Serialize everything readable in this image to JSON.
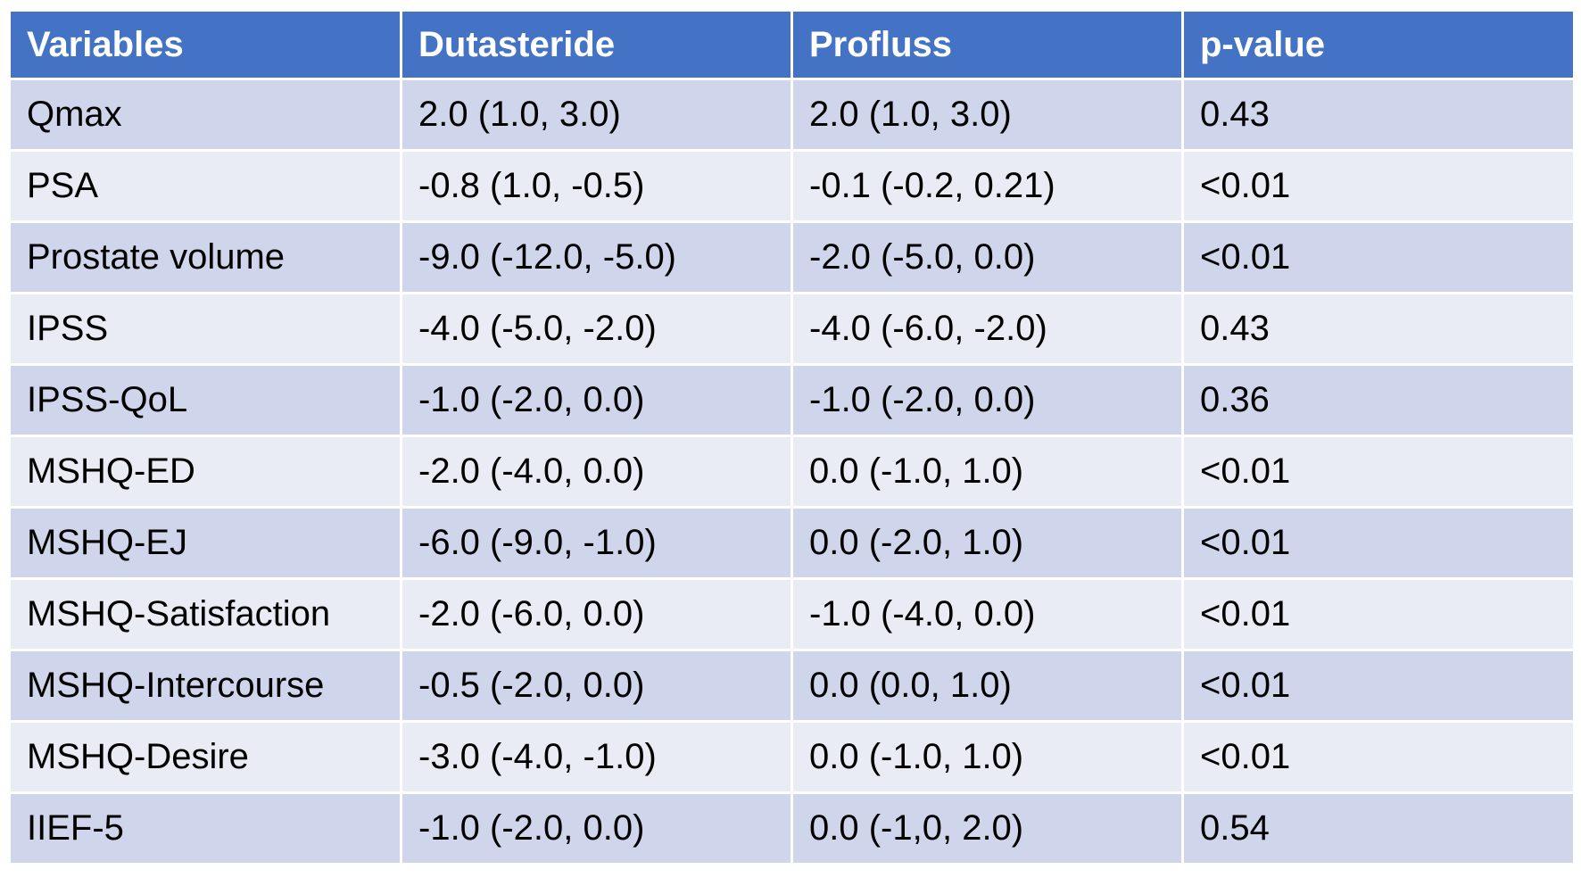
{
  "colors": {
    "header_bg": "#4472c4",
    "header_text": "#ffffff",
    "row_odd_bg": "#cfd5ea",
    "row_even_bg": "#e9ebf5"
  },
  "table": {
    "headers": [
      "Variables",
      "Dutasteride",
      "Profluss",
      "p-value"
    ],
    "rows": [
      [
        "Qmax",
        "2.0 (1.0, 3.0)",
        "2.0 (1.0, 3.0)",
        "0.43"
      ],
      [
        "PSA",
        "-0.8 (1.0, -0.5)",
        "-0.1 (-0.2, 0.21)",
        "<0.01"
      ],
      [
        "Prostate volume",
        "-9.0 (-12.0, -5.0)",
        "-2.0 (-5.0, 0.0)",
        "<0.01"
      ],
      [
        "IPSS",
        "-4.0 (-5.0, -2.0)",
        "-4.0 (-6.0, -2.0)",
        "0.43"
      ],
      [
        "IPSS-QoL",
        "-1.0 (-2.0, 0.0)",
        "-1.0 (-2.0, 0.0)",
        "0.36"
      ],
      [
        "MSHQ-ED",
        "-2.0 (-4.0, 0.0)",
        "0.0 (-1.0, 1.0)",
        "<0.01"
      ],
      [
        "MSHQ-EJ",
        "-6.0 (-9.0, -1.0)",
        "0.0 (-2.0, 1.0)",
        "<0.01"
      ],
      [
        "MSHQ-Satisfaction",
        "-2.0 (-6.0, 0.0)",
        "-1.0 (-4.0, 0.0)",
        "<0.01"
      ],
      [
        "MSHQ-Intercourse",
        "-0.5 (-2.0, 0.0)",
        "0.0 (0.0, 1.0)",
        "<0.01"
      ],
      [
        "MSHQ-Desire",
        "-3.0 (-4.0, -1.0)",
        "0.0 (-1.0, 1.0)",
        "<0.01"
      ],
      [
        "IIEF-5",
        "-1.0 (-2.0, 0.0)",
        "0.0 (-1,0, 2.0)",
        "0.54"
      ]
    ]
  }
}
